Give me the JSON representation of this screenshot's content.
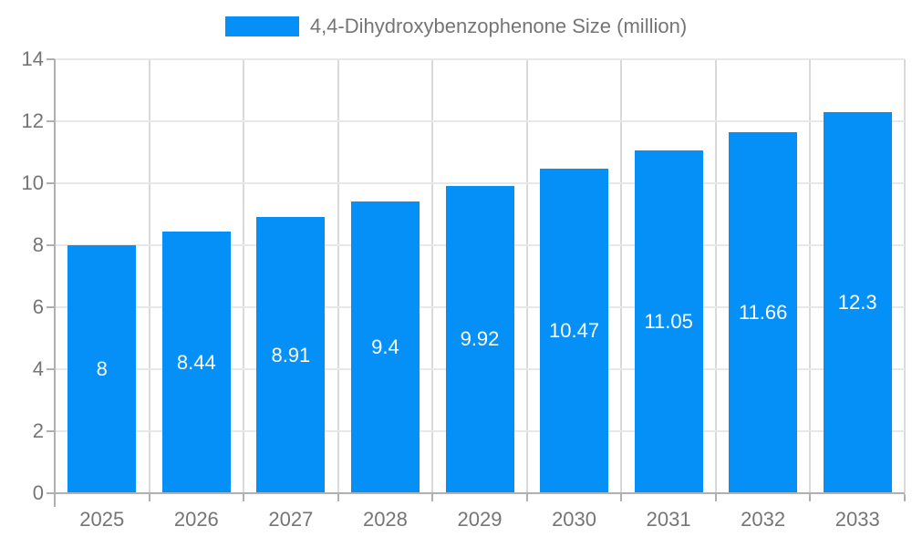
{
  "legend": {
    "label": "4,4-Dihydroxybenzophenone Size (million)"
  },
  "chart_data": {
    "type": "bar",
    "title": "",
    "legend_entries": [
      "4,4-Dihydroxybenzophenone Size (million)"
    ],
    "legend_position": "top-center",
    "categories": [
      "2025",
      "2026",
      "2027",
      "2028",
      "2029",
      "2030",
      "2031",
      "2032",
      "2033"
    ],
    "values": [
      8,
      8.44,
      8.91,
      9.4,
      9.92,
      10.47,
      11.05,
      11.66,
      12.3
    ],
    "value_labels": [
      "8",
      "8.44",
      "8.91",
      "9.4",
      "9.92",
      "10.47",
      "11.05",
      "11.66",
      "12.3"
    ],
    "xlabel": "",
    "ylabel": "",
    "ylim": [
      0,
      14
    ],
    "ytick_step": 2,
    "ytick_labels": [
      "0",
      "2",
      "4",
      "6",
      "8",
      "10",
      "12",
      "14"
    ],
    "grid": "on",
    "colors": {
      "bar": "#0590f8",
      "bar_value_text": "#ffffff",
      "axis_line": "#b0b0b0",
      "gridline_h": "#e8e8e8",
      "gridline_v": "#d9d9d9",
      "axis_text": "#757575"
    }
  }
}
